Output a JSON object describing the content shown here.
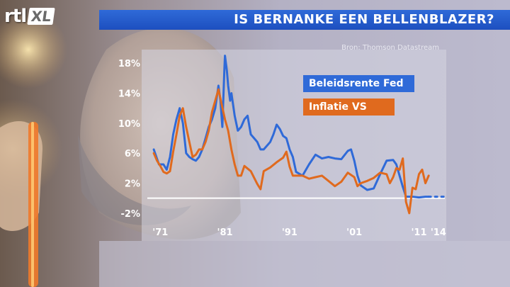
{
  "logo": {
    "brand": "rtl",
    "channel": "XL"
  },
  "header": {
    "title": "IS BERNANKE EEN BELLENBLAZER?"
  },
  "source": "Bron: Thomson Datastream",
  "colors": {
    "fed": "#2f6ad8",
    "inflation": "#e06a1e",
    "title_bar": "#2f6ad8",
    "panel": "#c8c8d8"
  },
  "chart_data": {
    "type": "line",
    "title": "",
    "xlabel": "",
    "ylabel": "",
    "xlim": [
      1969,
      2015
    ],
    "ylim": [
      -4,
      20
    ],
    "x_ticks": [
      1971,
      1981,
      1991,
      2001,
      2011,
      2014
    ],
    "x_tick_labels": [
      "'71",
      "'81",
      "'91",
      "'01",
      "'11",
      "'14"
    ],
    "y_ticks": [
      18,
      14,
      10,
      6,
      2,
      -2
    ],
    "y_tick_labels": [
      "18%",
      "14%",
      "10%",
      "6%",
      "2%",
      "-2%"
    ],
    "zero_line": true,
    "legend": {
      "position": "top-right",
      "entries": [
        "Beleidsrente Fed",
        "Inflatie VS"
      ]
    },
    "series": [
      {
        "name": "Beleidsrente Fed",
        "color": "#2f6ad8",
        "projection": {
          "x": [
            2012.5,
            2015
          ],
          "y": [
            0.2,
            0.2
          ],
          "style": "dotted"
        },
        "x": [
          1970,
          1970.8,
          1971.5,
          1972,
          1972.5,
          1973,
          1973.5,
          1974,
          1974.5,
          1975,
          1975.5,
          1976,
          1976.5,
          1977,
          1977.5,
          1978,
          1978.5,
          1979,
          1979.5,
          1980,
          1980.3,
          1980.6,
          1980.9,
          1981,
          1981.3,
          1981.5,
          1981.8,
          1982,
          1982.5,
          1983,
          1983.5,
          1984,
          1984.5,
          1985,
          1985.5,
          1986,
          1986.5,
          1987,
          1987.5,
          1988,
          1988.5,
          1989,
          1989.5,
          1990,
          1990.5,
          1991,
          1991.5,
          1992,
          1993,
          1994,
          1995,
          1996,
          1997,
          1998,
          1999,
          2000,
          2000.5,
          2001,
          2001.5,
          2002,
          2003,
          2004,
          2005,
          2006,
          2007,
          2007.5,
          2008,
          2008.5,
          2009,
          2010,
          2011,
          2012,
          2012.5
        ],
        "y": [
          6.5,
          4.5,
          4.5,
          3.8,
          5.5,
          8.5,
          10.5,
          12,
          10,
          6,
          5.5,
          5.2,
          5,
          5.5,
          6.5,
          8,
          9.5,
          10.5,
          12,
          15,
          13,
          9.5,
          17,
          19,
          17,
          15,
          13,
          14,
          11,
          9,
          9.5,
          10.5,
          11,
          8.5,
          8,
          7.5,
          6.5,
          6.5,
          7,
          7.5,
          8.5,
          9.8,
          9.2,
          8.3,
          8,
          6.5,
          5.5,
          3.5,
          3,
          4.5,
          5.8,
          5.3,
          5.5,
          5.3,
          5.2,
          6.3,
          6.5,
          5,
          3,
          1.7,
          1.1,
          1.3,
          3.2,
          5,
          5.1,
          4.5,
          3,
          1.5,
          0.2,
          0.2,
          0.1,
          0.2,
          0.2
        ]
      },
      {
        "name": "Inflatie VS",
        "color": "#e06a1e",
        "x": [
          1970,
          1970.5,
          1971,
          1971.5,
          1972,
          1972.5,
          1973,
          1973.5,
          1974,
          1974.5,
          1975,
          1975.5,
          1976,
          1976.5,
          1977,
          1977.5,
          1978,
          1978.5,
          1979,
          1979.5,
          1980,
          1980.5,
          1981,
          1981.5,
          1982,
          1982.5,
          1983,
          1983.5,
          1984,
          1985,
          1986,
          1986.5,
          1987,
          1988,
          1989,
          1990,
          1990.5,
          1991,
          1991.5,
          1992,
          1993,
          1994,
          1995,
          1996,
          1997,
          1998,
          1999,
          2000,
          2001,
          2001.5,
          2002,
          2003,
          2004,
          2005,
          2006,
          2006.5,
          2007,
          2007.5,
          2008,
          2008.5,
          2009,
          2009.5,
          2010,
          2010.5,
          2011,
          2011.5,
          2012,
          2012.5
        ],
        "y": [
          6,
          5,
          4.3,
          3.5,
          3.3,
          3.6,
          6.2,
          8.5,
          11,
          12,
          9.5,
          7.5,
          5.5,
          5.8,
          6.5,
          6.5,
          7.5,
          9,
          11.5,
          13,
          14.5,
          12.5,
          10.5,
          9,
          6.5,
          4.5,
          3,
          3,
          4.3,
          3.6,
          1.9,
          1.2,
          3.6,
          4.1,
          4.8,
          5.4,
          6.2,
          4.2,
          3,
          3,
          3,
          2.6,
          2.8,
          3,
          2.3,
          1.6,
          2.2,
          3.4,
          2.8,
          1.6,
          2,
          2.3,
          2.7,
          3.4,
          3.2,
          2,
          2.8,
          4,
          3.8,
          5.3,
          -0.5,
          -2,
          1.4,
          1.2,
          3.2,
          3.8,
          2,
          3
        ]
      }
    ]
  }
}
